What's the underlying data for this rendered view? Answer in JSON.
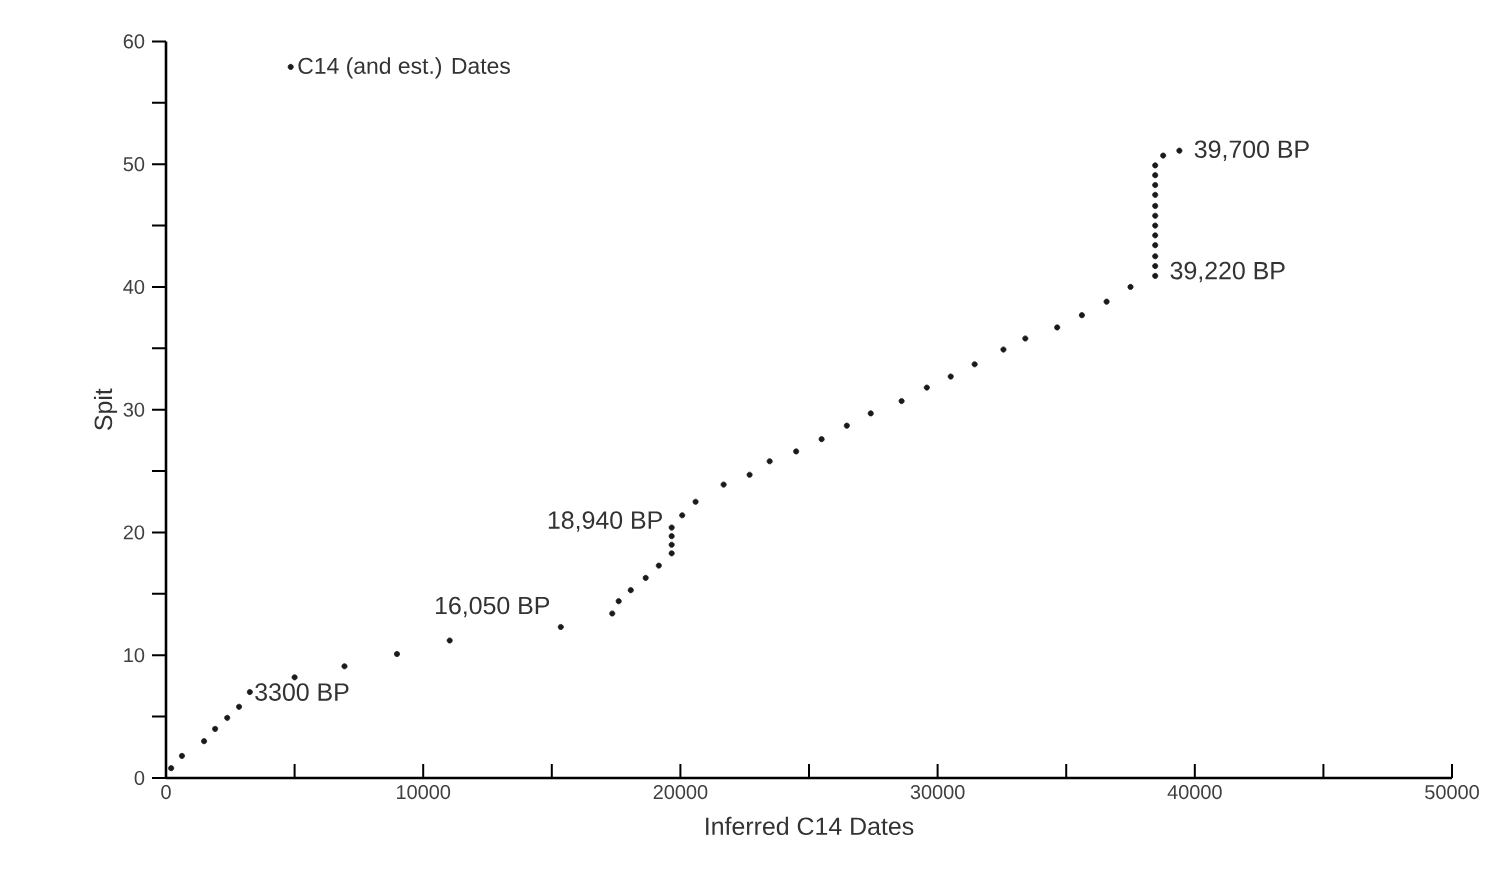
{
  "chart_data": {
    "type": "scatter",
    "xlabel": "Inferred C14 Dates",
    "ylabel": "Spit",
    "x": [
      200,
      620,
      1480,
      1910,
      2380,
      2840,
      3260,
      5000,
      6940,
      8980,
      11030,
      15350,
      17350,
      17600,
      18070,
      18650,
      19160,
      19660,
      19660,
      19660,
      19660,
      20070,
      20590,
      21680,
      22690,
      23470,
      24500,
      25490,
      26470,
      27400,
      28600,
      29580,
      30510,
      31440,
      32560,
      33410,
      34650,
      35610,
      36570,
      37500,
      38460,
      38460,
      38460,
      38460,
      38460,
      38460,
      38460,
      38460,
      38460,
      38460,
      38460,
      38460,
      38770,
      39400
    ],
    "series": [
      {
        "name": "C14 (and est.) Dates",
        "color": "#1a1a1a",
        "values": [
          0.8,
          1.8,
          3.0,
          4.0,
          4.9,
          5.8,
          7.0,
          8.2,
          9.1,
          10.1,
          11.2,
          12.3,
          13.4,
          14.4,
          15.3,
          16.3,
          17.3,
          18.3,
          19.0,
          19.7,
          20.4,
          21.4,
          22.5,
          23.9,
          24.7,
          25.8,
          26.6,
          27.6,
          28.7,
          29.7,
          30.7,
          31.8,
          32.7,
          33.7,
          34.9,
          35.8,
          36.7,
          37.7,
          38.8,
          40.0,
          40.9,
          41.7,
          42.5,
          43.4,
          44.2,
          45.0,
          45.8,
          46.6,
          47.5,
          48.3,
          49.1,
          49.9,
          50.7,
          51.1
        ]
      }
    ],
    "xlim": [
      0,
      50000
    ],
    "ylim": [
      0,
      60
    ],
    "xticks": [
      0,
      {
        "value": 5000,
        "label": null
      },
      10000,
      {
        "value": 15000,
        "label": null
      },
      20000,
      {
        "value": 25000,
        "label": null
      },
      30000,
      {
        "value": 35000,
        "label": null
      },
      40000,
      {
        "value": 45000,
        "label": null
      },
      50000
    ],
    "yticks": [
      0,
      {
        "value": 5,
        "label": null
      },
      10,
      {
        "value": 15,
        "label": null
      },
      20,
      {
        "value": 25,
        "label": null
      },
      30,
      {
        "value": 35,
        "label": null
      },
      40,
      {
        "value": 45,
        "label": null
      },
      50,
      {
        "value": 55,
        "label": null
      },
      60
    ],
    "annotations": [
      {
        "text": "3300 BP",
        "x": 3260,
        "y": 7.0
      },
      {
        "text": "16,050 BP",
        "x": 15350,
        "y": 12.3
      },
      {
        "text": "18,940 BP",
        "x": 19660,
        "y": 20.4
      },
      {
        "text": "39,220 BP",
        "x": 38460,
        "y": 41.7
      },
      {
        "text": "39,700 BP",
        "x": 39400,
        "y": 51.1
      }
    ],
    "marker": "circle",
    "legend": "top left",
    "grid": false
  }
}
